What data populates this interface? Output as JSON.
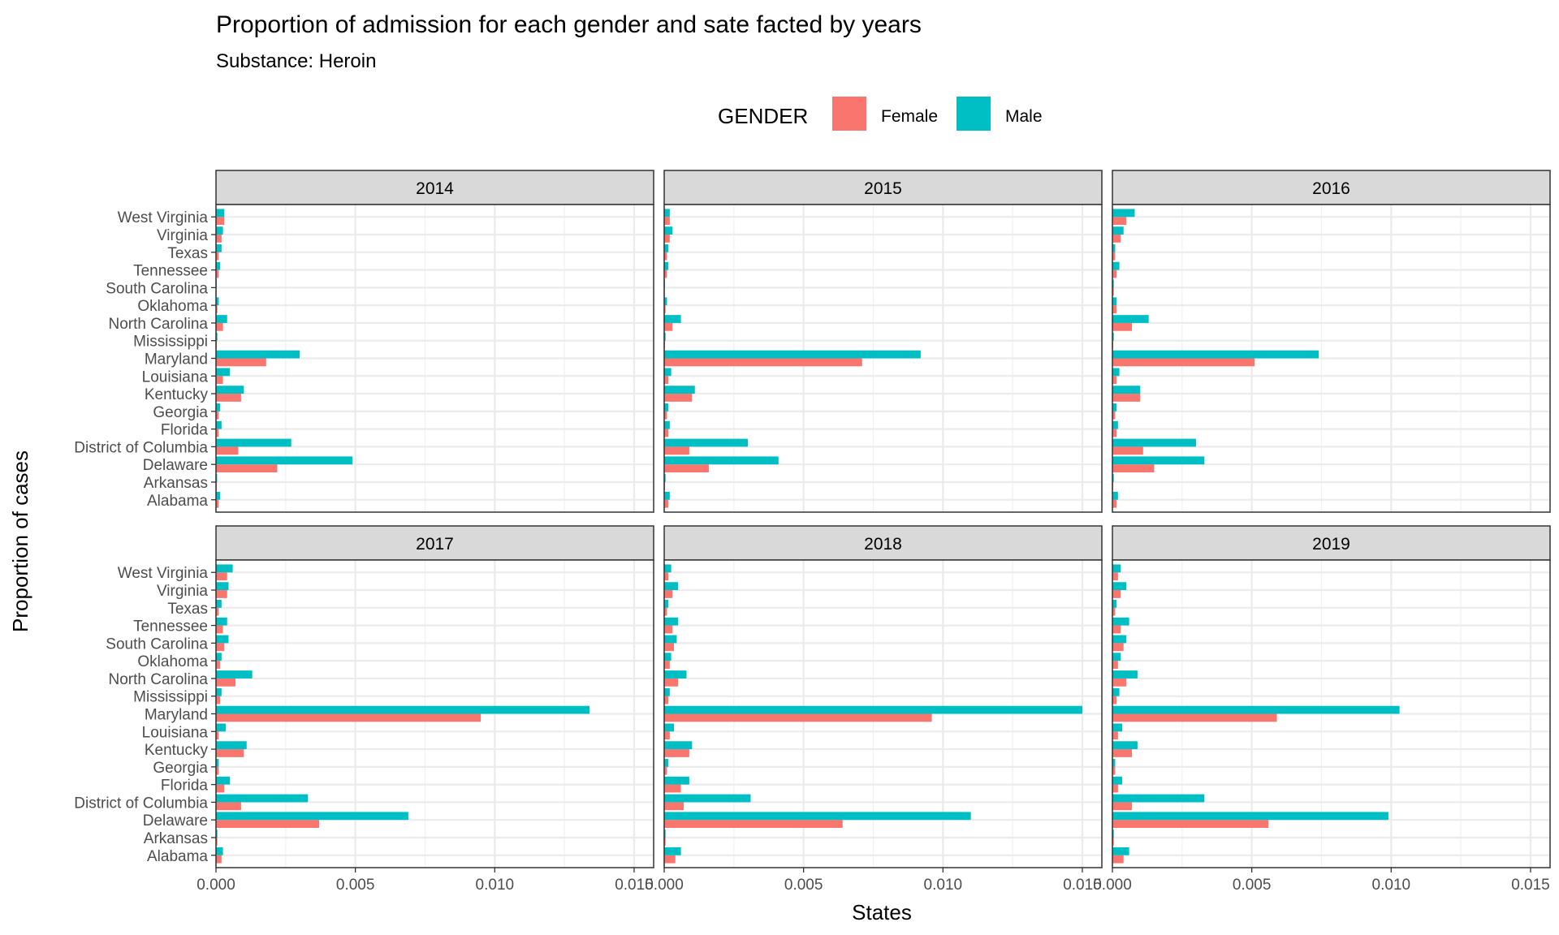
{
  "chart_data": {
    "type": "bar",
    "orientation": "horizontal",
    "title": "Proportion of admission for each gender and sate facted by years",
    "subtitle": "Substance: Heroin",
    "xlabel": "States",
    "ylabel": "Proportion of cases",
    "legend": {
      "title": "GENDER",
      "position": "top",
      "entries": [
        {
          "name": "Female",
          "color": "#F8766D"
        },
        {
          "name": "Male",
          "color": "#00BFC4"
        }
      ]
    },
    "categories": [
      "Alabama",
      "Arkansas",
      "Delaware",
      "District of Columbia",
      "Florida",
      "Georgia",
      "Kentucky",
      "Louisiana",
      "Maryland",
      "Mississippi",
      "North Carolina",
      "Oklahoma",
      "South Carolina",
      "Tennessee",
      "Texas",
      "Virginia",
      "West Virginia"
    ],
    "xlim": [
      0,
      0.0157
    ],
    "x_ticks": [
      0,
      0.005,
      0.01,
      0.015
    ],
    "x_tick_labels": [
      "0.000",
      "0.005",
      "0.010",
      "0.015"
    ],
    "grid": true,
    "facets": [
      {
        "label": "2014",
        "series": [
          {
            "name": "Female",
            "values": [
              0.0001,
              3e-05,
              0.0022,
              0.0008,
              0.0001,
              0.0001,
              0.0009,
              0.00025,
              0.0018,
              3e-05,
              0.00025,
              5e-05,
              2e-05,
              0.0001,
              0.0001,
              0.0002,
              0.0003
            ]
          },
          {
            "name": "Male",
            "values": [
              0.00015,
              4e-05,
              0.0049,
              0.0027,
              0.0002,
              0.00015,
              0.001,
              0.0005,
              0.003,
              5e-05,
              0.0004,
              0.0001,
              3e-05,
              0.00015,
              0.0002,
              0.00025,
              0.0003
            ]
          }
        ]
      },
      {
        "label": "2015",
        "series": [
          {
            "name": "Female",
            "values": [
              0.00015,
              3e-05,
              0.0016,
              0.0009,
              0.00015,
              0.0001,
              0.001,
              0.00015,
              0.0071,
              3e-05,
              0.0003,
              5e-05,
              2e-05,
              0.0001,
              0.0001,
              0.0002,
              0.0002
            ]
          },
          {
            "name": "Male",
            "values": [
              0.0002,
              5e-05,
              0.0041,
              0.003,
              0.0002,
              0.00015,
              0.0011,
              0.00025,
              0.0092,
              5e-05,
              0.0006,
              0.0001,
              3e-05,
              0.00015,
              0.00015,
              0.0003,
              0.0002
            ]
          }
        ]
      },
      {
        "label": "2016",
        "series": [
          {
            "name": "Female",
            "values": [
              0.00015,
              3e-05,
              0.0015,
              0.0011,
              0.00015,
              0.0001,
              0.001,
              0.00015,
              0.0051,
              3e-05,
              0.0007,
              0.00015,
              5e-05,
              0.00015,
              0.0001,
              0.0003,
              0.0005
            ]
          },
          {
            "name": "Male",
            "values": [
              0.0002,
              5e-05,
              0.0033,
              0.003,
              0.0002,
              0.00015,
              0.001,
              0.00025,
              0.0074,
              5e-05,
              0.0013,
              0.00015,
              5e-05,
              0.00025,
              0.0001,
              0.0004,
              0.0008
            ]
          }
        ]
      },
      {
        "label": "2017",
        "series": [
          {
            "name": "Female",
            "values": [
              0.0002,
              5e-05,
              0.0037,
              0.0009,
              0.0003,
              0.0001,
              0.001,
              0.0001,
              0.0095,
              0.00015,
              0.0007,
              0.00015,
              0.0003,
              0.00025,
              0.0001,
              0.0004,
              0.0004
            ]
          },
          {
            "name": "Male",
            "values": [
              0.00025,
              5e-05,
              0.0069,
              0.0033,
              0.0005,
              0.0001,
              0.0011,
              0.00035,
              0.0134,
              0.0002,
              0.0013,
              0.0002,
              0.00045,
              0.0004,
              0.0002,
              0.00045,
              0.0006
            ]
          }
        ]
      },
      {
        "label": "2018",
        "series": [
          {
            "name": "Female",
            "values": [
              0.0004,
              5e-05,
              0.0064,
              0.0007,
              0.0006,
              0.0001,
              0.0009,
              0.0002,
              0.0096,
              0.00015,
              0.0005,
              0.0002,
              0.00035,
              0.0003,
              0.0001,
              0.0003,
              0.00015
            ]
          },
          {
            "name": "Male",
            "values": [
              0.0006,
              5e-05,
              0.011,
              0.0031,
              0.0009,
              0.00015,
              0.001,
              0.00035,
              0.015,
              0.0002,
              0.0008,
              0.00025,
              0.00045,
              0.0005,
              0.00015,
              0.0005,
              0.00025
            ]
          }
        ]
      },
      {
        "label": "2019",
        "series": [
          {
            "name": "Female",
            "values": [
              0.0004,
              5e-05,
              0.0056,
              0.0007,
              0.0002,
              0.0001,
              0.0007,
              0.0002,
              0.0059,
              0.00015,
              0.0005,
              0.0002,
              0.0004,
              0.0003,
              0.0001,
              0.0003,
              0.0002
            ]
          },
          {
            "name": "Male",
            "values": [
              0.0006,
              5e-05,
              0.0099,
              0.0033,
              0.00035,
              0.0001,
              0.0009,
              0.00035,
              0.0103,
              0.00025,
              0.0009,
              0.0003,
              0.0005,
              0.0006,
              0.00015,
              0.0005,
              0.0003
            ]
          }
        ]
      }
    ]
  }
}
